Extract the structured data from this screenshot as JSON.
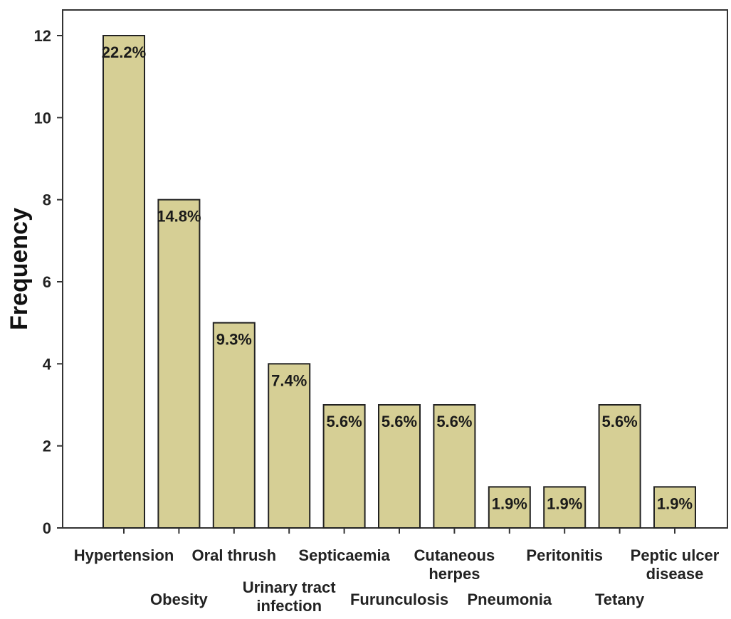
{
  "chart_data": {
    "type": "bar",
    "categories": [
      "Hypertension",
      "Obesity",
      "Oral thrush",
      "Urinary tract infection",
      "Septicaemia",
      "Furunculosis",
      "Cutaneous herpes",
      "Pneumonia",
      "Peritonitis",
      "Tetany",
      "Peptic ulcer disease"
    ],
    "values": [
      12,
      8,
      5,
      4,
      3,
      3,
      3,
      1,
      1,
      3,
      1
    ],
    "data_labels": [
      "22.2%",
      "14.8%",
      "9.3%",
      "7.4%",
      "5.6%",
      "5.6%",
      "5.6%",
      "1.9%",
      "1.9%",
      "5.6%",
      "1.9%"
    ],
    "title": "",
    "xlabel": "",
    "ylabel": "Frequency",
    "ylim": [
      0,
      12
    ],
    "yticks": [
      0,
      2,
      4,
      6,
      8,
      10,
      12
    ],
    "grid": false,
    "legend": "none",
    "bar_color": "#d6cf95",
    "bar_edge_color": "#222222"
  }
}
